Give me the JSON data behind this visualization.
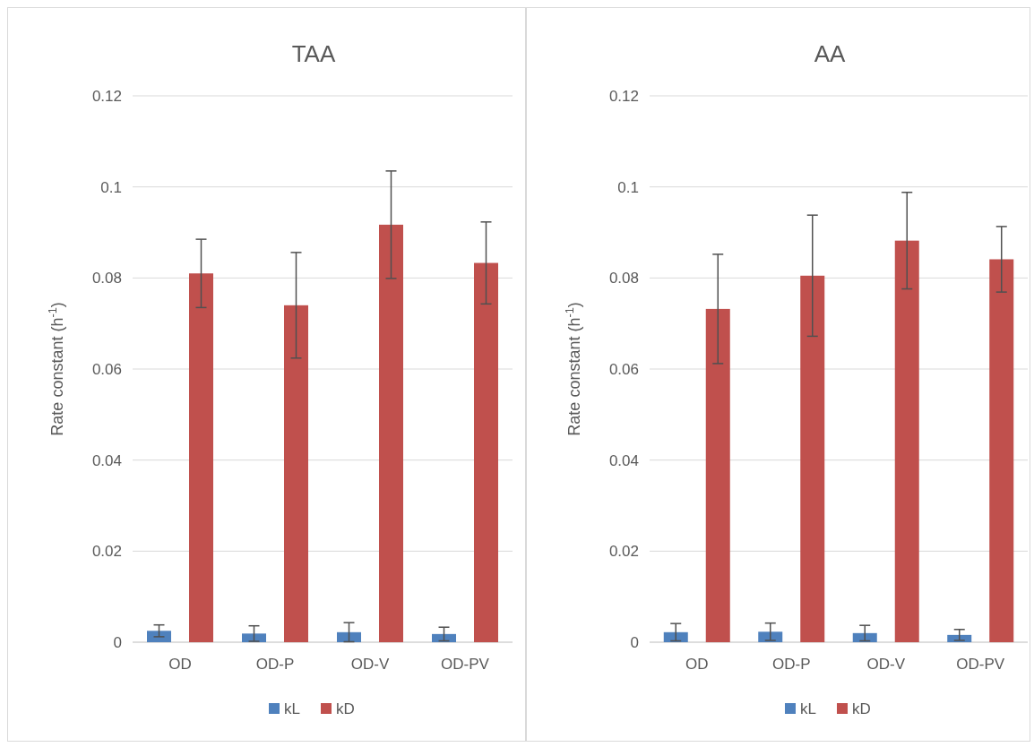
{
  "chart_data": [
    {
      "type": "bar",
      "title": "TAA",
      "ylabel": "Rate constant (h$^{-1}$)",
      "categories": [
        "OD",
        "OD-P",
        "OD-V",
        "OD-PV"
      ],
      "ylim": [
        0,
        0.12
      ],
      "yticks": [
        0,
        0.02,
        0.04,
        0.06,
        0.08,
        0.1,
        0.12
      ],
      "grid": "y",
      "legend": "bottom",
      "series": [
        {
          "name": "kL",
          "color": "#4f81bd",
          "values": [
            0.0025,
            0.0019,
            0.0022,
            0.0018
          ],
          "errors": [
            0.0013,
            0.0017,
            0.0021,
            0.0015
          ]
        },
        {
          "name": "kD",
          "color": "#c0504d",
          "values": [
            0.081,
            0.074,
            0.0917,
            0.0833
          ],
          "errors": [
            0.0075,
            0.0116,
            0.0118,
            0.009
          ]
        }
      ]
    },
    {
      "type": "bar",
      "title": "AA",
      "ylabel": "Rate constant (h$^{-1}$)",
      "categories": [
        "OD",
        "OD-P",
        "OD-V",
        "OD-PV"
      ],
      "ylim": [
        0,
        0.12
      ],
      "yticks": [
        0,
        0.02,
        0.04,
        0.06,
        0.08,
        0.1,
        0.12
      ],
      "grid": "y",
      "legend": "bottom",
      "series": [
        {
          "name": "kL",
          "color": "#4f81bd",
          "values": [
            0.0022,
            0.0023,
            0.002,
            0.0016
          ],
          "errors": [
            0.0019,
            0.0019,
            0.0017,
            0.0012
          ]
        },
        {
          "name": "kD",
          "color": "#c0504d",
          "values": [
            0.0732,
            0.0805,
            0.0882,
            0.0841
          ],
          "errors": [
            0.012,
            0.0133,
            0.0106,
            0.0072
          ]
        }
      ]
    }
  ]
}
